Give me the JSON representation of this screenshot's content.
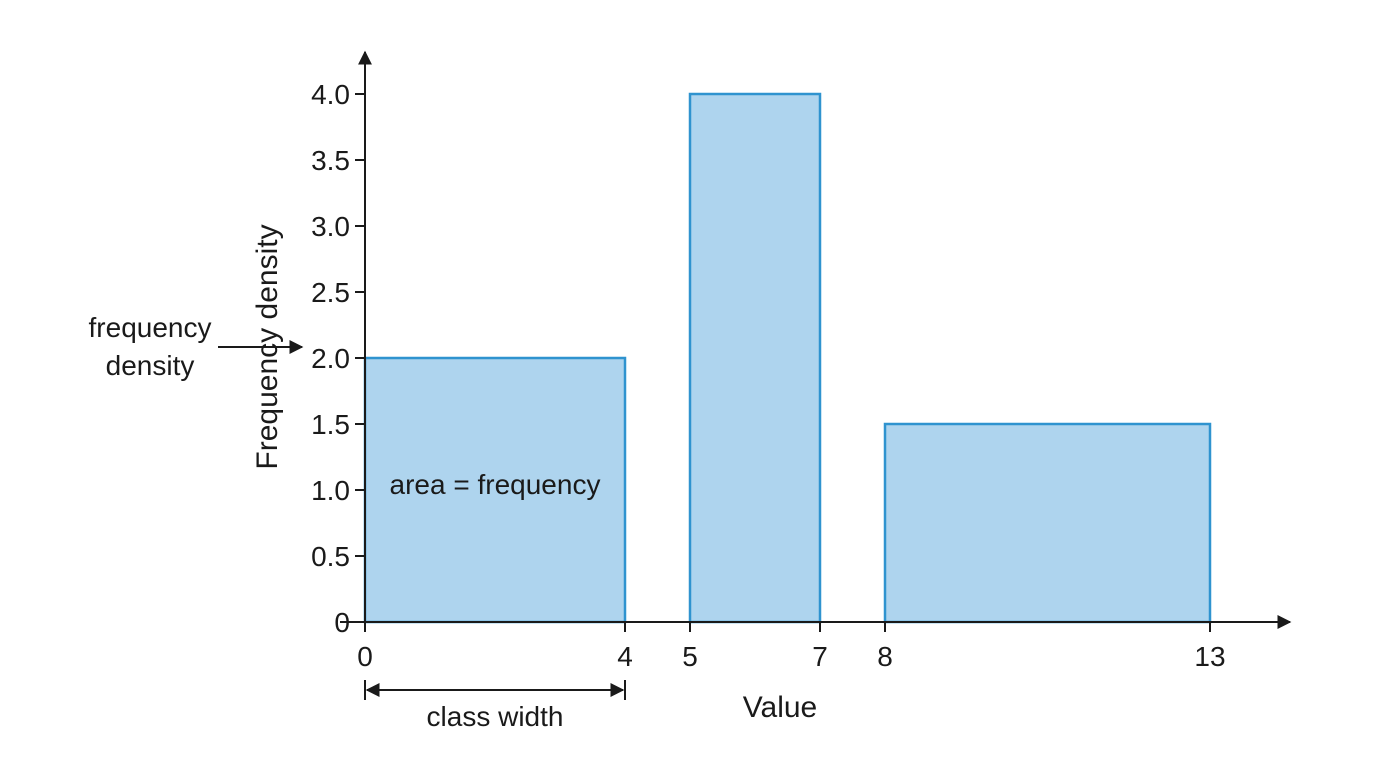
{
  "chart_data": {
    "type": "bar",
    "variant": "histogram",
    "bins": [
      {
        "start": 0,
        "end": 4,
        "value": 2.0
      },
      {
        "start": 5,
        "end": 7,
        "value": 4.0
      },
      {
        "start": 8,
        "end": 13,
        "value": 1.5
      }
    ],
    "xlabel": "Value",
    "ylabel": "Frequency density",
    "x_ticks": [
      "0",
      "4",
      "5",
      "7",
      "8",
      "13"
    ],
    "y_ticks": [
      "0",
      "0.5",
      "1.0",
      "1.5",
      "2.0",
      "2.5",
      "3.0",
      "3.5",
      "4.0"
    ],
    "xlim": [
      0,
      13
    ],
    "ylim": [
      0,
      4.0
    ],
    "grid": false,
    "bar_fill": "#aed4ee",
    "bar_stroke": "#2f93cf",
    "annotations": {
      "area_label": "area = frequency",
      "class_width_label": "class width",
      "fd_label_line1": "frequency",
      "fd_label_line2": "density"
    }
  }
}
